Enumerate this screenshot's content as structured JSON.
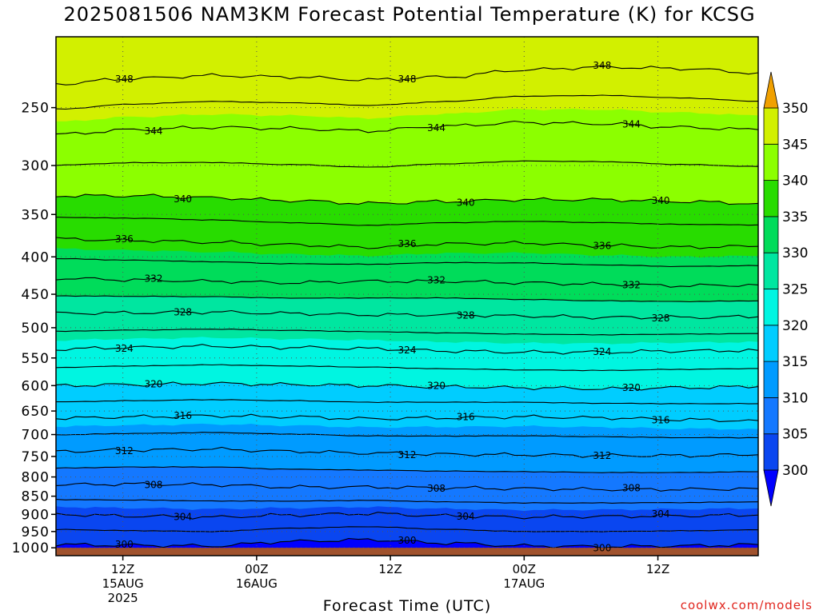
{
  "watermark": "coolwx.com/models",
  "chart_data": {
    "type": "heatmap",
    "title": "2025081506 NAM3KM Forecast Potential Temperature (K) for KCSG",
    "xlabel": "Forecast Time (UTC)",
    "ylabel": "",
    "y_scale": "log",
    "y_reversed": true,
    "ylim": [
      1025,
      200
    ],
    "xlim": [
      "2025-08-15 06Z",
      "2025-08-17 21Z"
    ],
    "y_ticks": [
      250,
      300,
      350,
      400,
      450,
      500,
      550,
      600,
      650,
      700,
      750,
      800,
      850,
      900,
      950,
      1000
    ],
    "x_ticks": [
      {
        "time": "2025-08-15 12Z",
        "lines": [
          "12Z",
          "15AUG",
          "2025"
        ]
      },
      {
        "time": "2025-08-16 00Z",
        "lines": [
          "00Z",
          "16AUG"
        ]
      },
      {
        "time": "2025-08-16 12Z",
        "lines": [
          "12Z"
        ]
      },
      {
        "time": "2025-08-17 00Z",
        "lines": [
          "00Z",
          "17AUG"
        ]
      },
      {
        "time": "2025-08-17 12Z",
        "lines": [
          "12Z"
        ]
      }
    ],
    "grid": "dotted",
    "units": "K",
    "colorbar": {
      "position": "right",
      "levels": [
        300,
        305,
        310,
        315,
        320,
        325,
        330,
        335,
        340,
        345,
        350
      ],
      "labels": [
        "300",
        "305",
        "310",
        "315",
        "320",
        "325",
        "330",
        "335",
        "340",
        "345",
        "350"
      ],
      "colors": [
        "#0000ff",
        "#0a46f0",
        "#1478ff",
        "#009bff",
        "#00cdff",
        "#00f5e1",
        "#00e6a0",
        "#00dc5a",
        "#28dc00",
        "#8cff00",
        "#d2f000",
        "#ffff00",
        "#f0a000"
      ],
      "extend": "both"
    },
    "contour_interval": 2,
    "series": [
      {
        "value": 348,
        "label": "348",
        "pressures": [
          232,
          228,
          226,
          227,
          229,
          227,
          222,
          220,
          221,
          224
        ]
      },
      {
        "value": 344,
        "label": "344",
        "pressures": [
          272,
          268,
          266,
          267,
          269,
          265,
          262,
          263,
          266,
          268
        ]
      },
      {
        "value": 340,
        "label": "340",
        "pressures": [
          330,
          330,
          332,
          335,
          338,
          336,
          334,
          334,
          336,
          338
        ]
      },
      {
        "value": 336,
        "label": "336",
        "pressures": [
          378,
          380,
          382,
          385,
          388,
          384,
          383,
          386,
          388,
          387
        ]
      },
      {
        "value": 332,
        "label": "332",
        "pressures": [
          428,
          430,
          432,
          434,
          432,
          432,
          434,
          436,
          438,
          437
        ]
      },
      {
        "value": 328,
        "label": "328",
        "pressures": [
          478,
          477,
          476,
          478,
          480,
          480,
          482,
          484,
          484,
          483
        ]
      },
      {
        "value": 324,
        "label": "324",
        "pressures": [
          535,
          532,
          530,
          532,
          534,
          538,
          540,
          540,
          538,
          537
        ]
      },
      {
        "value": 320,
        "label": "320",
        "pressures": [
          600,
          598,
          596,
          598,
          600,
          602,
          604,
          606,
          604,
          602
        ]
      },
      {
        "value": 316,
        "label": "316",
        "pressures": [
          665,
          662,
          660,
          662,
          666,
          664,
          662,
          664,
          668,
          670
        ]
      },
      {
        "value": 312,
        "label": "312",
        "pressures": [
          738,
          735,
          733,
          738,
          742,
          745,
          746,
          748,
          748,
          746
        ]
      },
      {
        "value": 308,
        "label": "308",
        "pressures": [
          820,
          818,
          820,
          826,
          826,
          828,
          830,
          832,
          832,
          830
        ]
      },
      {
        "value": 304,
        "label": "304",
        "pressures": [
          900,
          905,
          908,
          902,
          898,
          904,
          908,
          906,
          904,
          902
        ]
      },
      {
        "value": 300,
        "label": "300",
        "pressures": [
          990,
          992,
          994,
          980,
          975,
          985,
          994,
          996,
          994,
          990
        ]
      }
    ]
  }
}
